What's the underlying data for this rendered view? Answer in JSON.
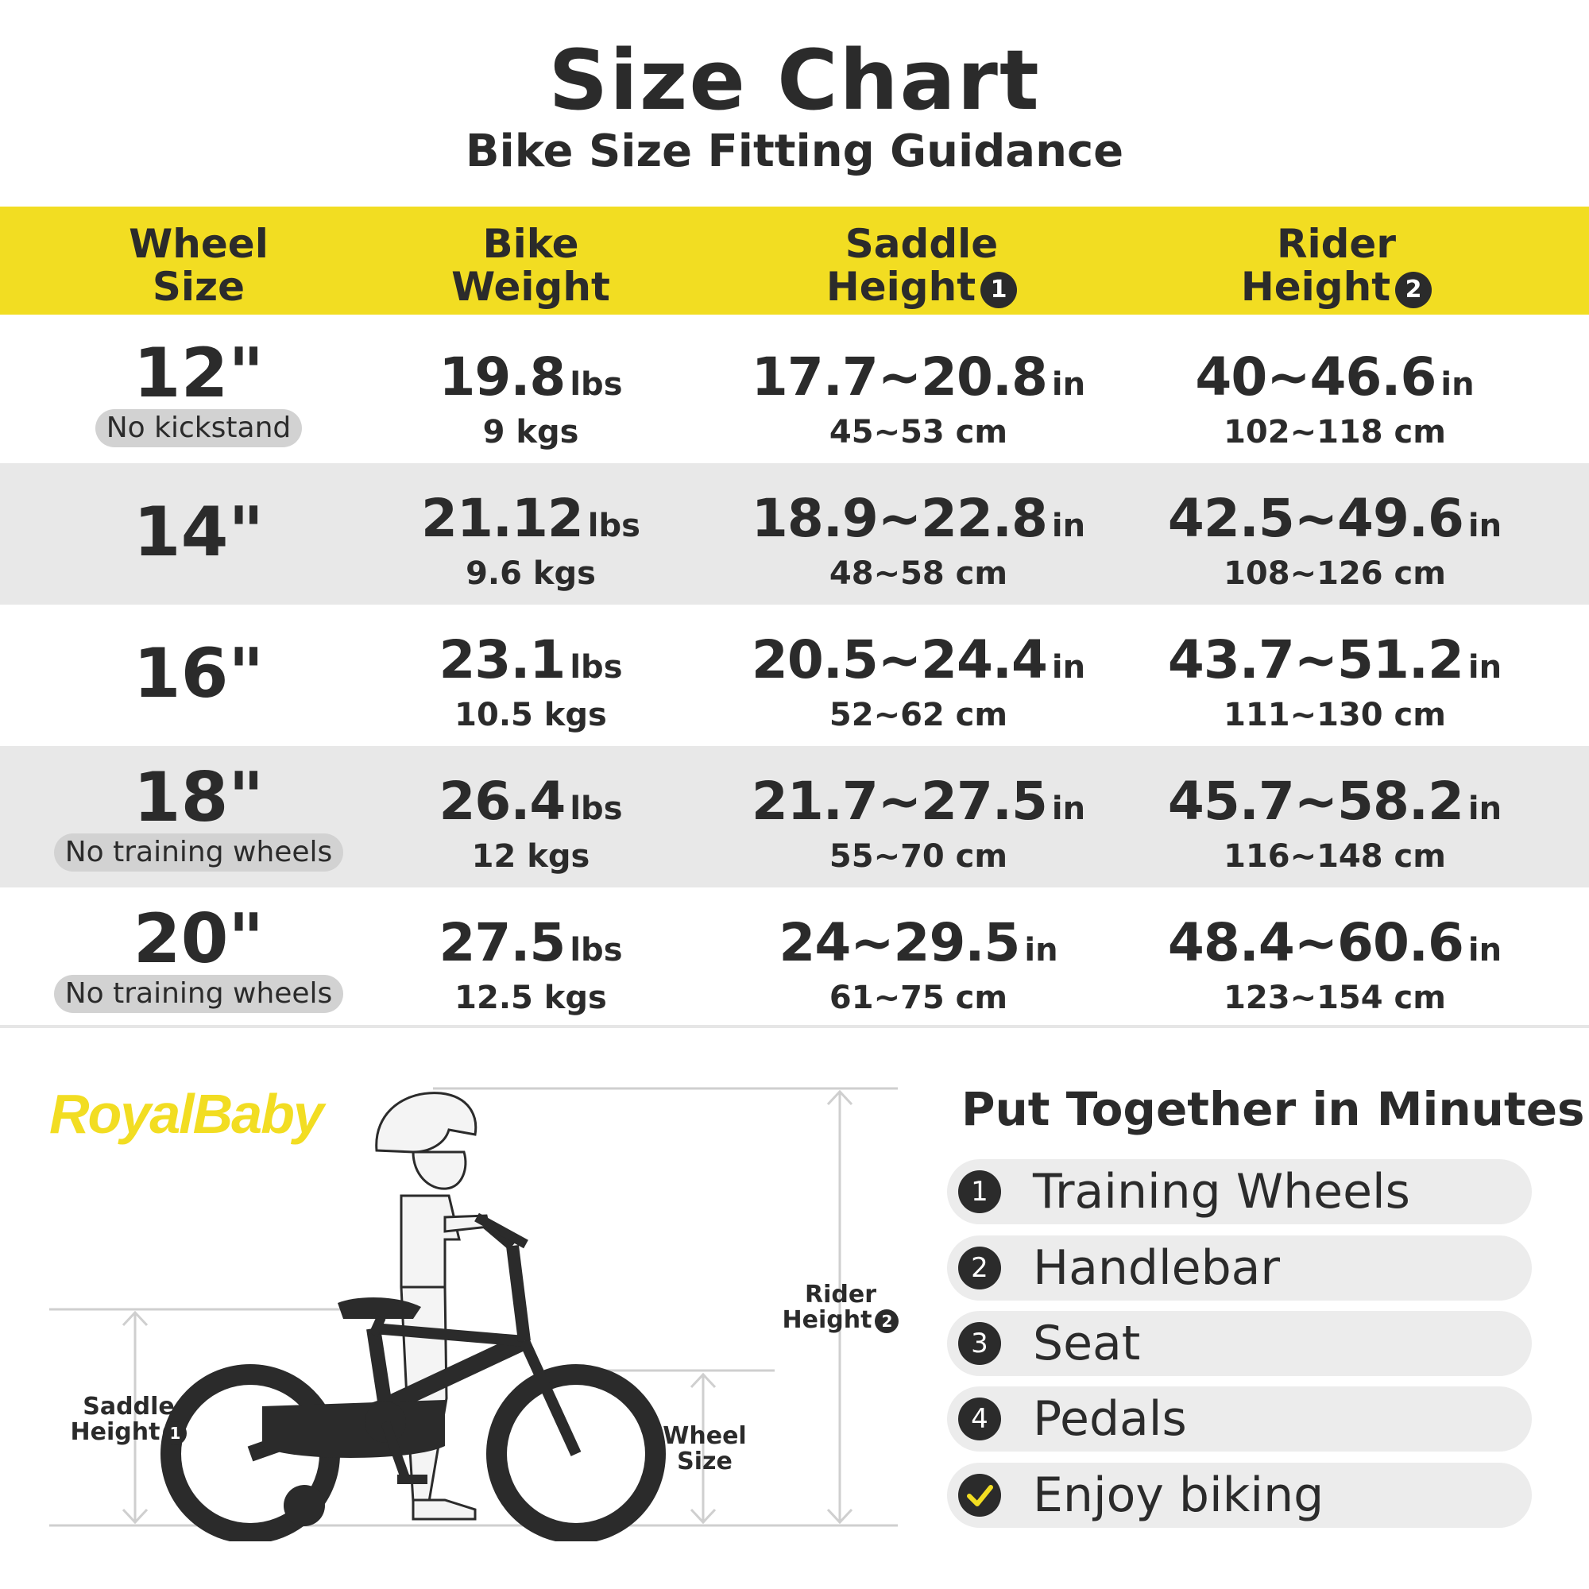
{
  "title": "Size Chart",
  "subtitle": "Bike Size Fitting Guidance",
  "headers": {
    "wheel": [
      "Wheel",
      "Size"
    ],
    "weight": [
      "Bike",
      "Weight"
    ],
    "saddle": [
      "Saddle",
      "Height",
      "1"
    ],
    "rider": [
      "Rider",
      "Height",
      "2"
    ]
  },
  "rows": [
    {
      "wheel": "12\"",
      "note": "No kickstand",
      "weight_lbs": "19.8",
      "weight_kgs": "9 kgs",
      "saddle_in": "17.7~20.8",
      "saddle_cm": "45~53 cm",
      "rider_in": "40~46.6",
      "rider_cm": "102~118 cm"
    },
    {
      "wheel": "14\"",
      "note": "",
      "weight_lbs": "21.12",
      "weight_kgs": "9.6 kgs",
      "saddle_in": "18.9~22.8",
      "saddle_cm": "48~58 cm",
      "rider_in": "42.5~49.6",
      "rider_cm": "108~126 cm"
    },
    {
      "wheel": "16\"",
      "note": "",
      "weight_lbs": "23.1",
      "weight_kgs": "10.5 kgs",
      "saddle_in": "20.5~24.4",
      "saddle_cm": "52~62 cm",
      "rider_in": "43.7~51.2",
      "rider_cm": "111~130 cm"
    },
    {
      "wheel": "18\"",
      "note": "No training wheels",
      "weight_lbs": "26.4",
      "weight_kgs": "12 kgs",
      "saddle_in": "21.7~27.5",
      "saddle_cm": "55~70 cm",
      "rider_in": "45.7~58.2",
      "rider_cm": "116~148 cm"
    },
    {
      "wheel": "20\"",
      "note": "No training wheels",
      "weight_lbs": "27.5",
      "weight_kgs": "12.5 kgs",
      "saddle_in": "24~29.5",
      "saddle_cm": "61~75 cm",
      "rider_in": "48.4~60.6",
      "rider_cm": "123~154 cm"
    }
  ],
  "units": {
    "lbs": "lbs",
    "in": "in"
  },
  "brand": "RoyalBaby",
  "diagram": {
    "saddle_label": [
      "Saddle",
      "Height",
      "1"
    ],
    "wheel_label": [
      "Wheel",
      "Size"
    ],
    "rider_label": [
      "Rider",
      "Height",
      "2"
    ]
  },
  "steps_title": "Put Together in Minutes",
  "steps": [
    {
      "num": "1",
      "label": "Training Wheels"
    },
    {
      "num": "2",
      "label": "Handlebar"
    },
    {
      "num": "3",
      "label": "Seat"
    },
    {
      "num": "4",
      "label": "Pedals"
    },
    {
      "num": "check",
      "label": "Enjoy biking"
    }
  ],
  "colors": {
    "accent": "#f2dd22",
    "dark": "#2b2b2b",
    "row_shade": "#e8e8e8"
  }
}
